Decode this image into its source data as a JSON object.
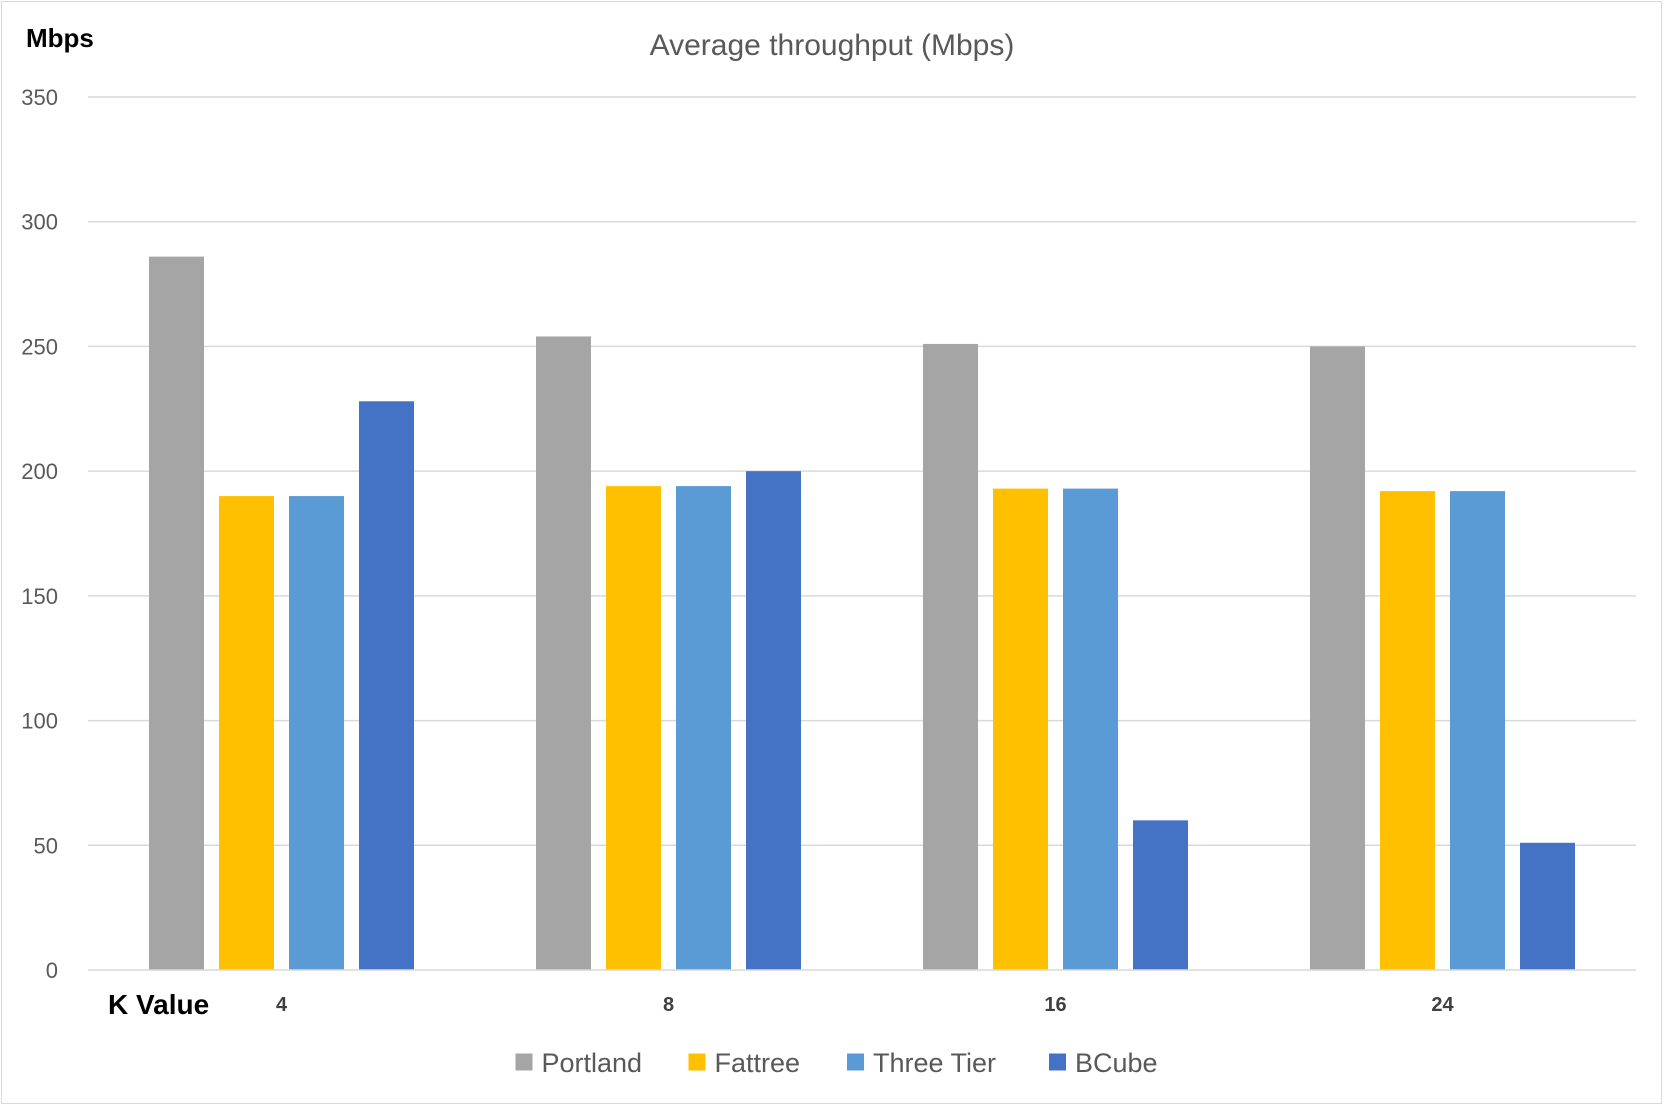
{
  "chart_data": {
    "type": "bar",
    "title": "Average throughput (Mbps)",
    "ylabel": "Mbps",
    "xlabel": "K Value",
    "categories": [
      "4",
      "8",
      "16",
      "24"
    ],
    "ylim": [
      0,
      350
    ],
    "yticks": [
      0,
      50,
      100,
      150,
      200,
      250,
      300,
      350
    ],
    "grid": true,
    "legend_position": "bottom",
    "series": [
      {
        "name": "Portland",
        "color": "#a5a5a5",
        "values": [
          286,
          254,
          251,
          250
        ]
      },
      {
        "name": "Fattree",
        "color": "#ffc000",
        "values": [
          190,
          194,
          193,
          192
        ]
      },
      {
        "name": "Three Tier",
        "color": "#5b9bd5",
        "values": [
          190,
          194,
          193,
          192
        ]
      },
      {
        "name": "BCube",
        "color": "#4472c4",
        "values": [
          228,
          200,
          60,
          51
        ]
      }
    ]
  }
}
